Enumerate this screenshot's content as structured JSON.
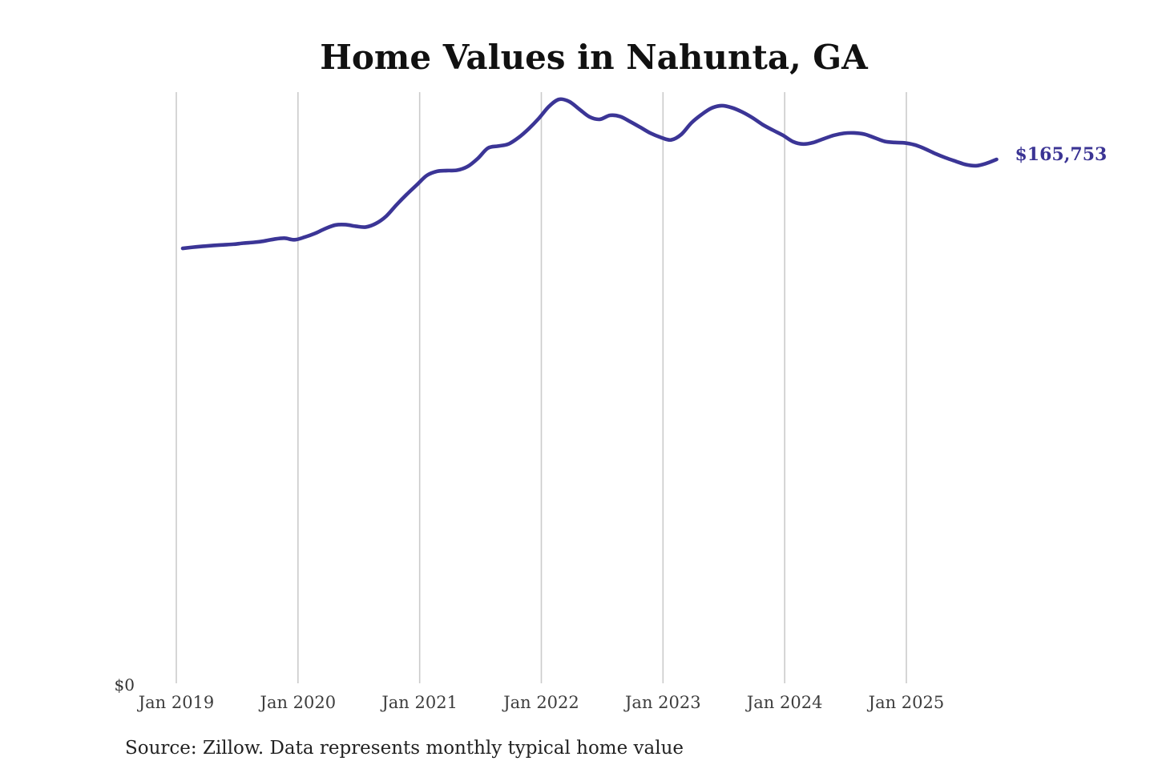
{
  "title": "Home Values in Nahunta, GA",
  "source_note": "Source: Zillow. Data represents monthly typical home value",
  "end_label": "$165,753",
  "y_axis": {
    "zero_label": "$0"
  },
  "x_axis": {
    "tick_labels": [
      "Jan 2019",
      "Jan 2020",
      "Jan 2021",
      "Jan 2022",
      "Jan 2023",
      "Jan 2024",
      "Jan 2025"
    ]
  },
  "colors": {
    "line": "#3b3596",
    "end_label": "#3b3494",
    "gridline": "#cbcbcb",
    "tick_text": "#3d3d3d",
    "yzero_text": "#333333",
    "title_text": "#111111",
    "source_text": "#222222"
  },
  "chart_data": {
    "type": "line",
    "title": "Home Values in Nahunta, GA",
    "series_name": "Monthly typical home value (USD)",
    "xlabel": "",
    "ylabel": "",
    "ylim": [
      0,
      187000
    ],
    "grid": "vertical-yearly",
    "legend": "none",
    "latest_value": 165753,
    "x_tick_labels": [
      "Jan 2019",
      "Jan 2020",
      "Jan 2021",
      "Jan 2022",
      "Jan 2023",
      "Jan 2024",
      "Jan 2025"
    ],
    "x": [
      "2019-01",
      "2019-02",
      "2019-03",
      "2019-04",
      "2019-05",
      "2019-06",
      "2019-07",
      "2019-08",
      "2019-09",
      "2019-10",
      "2019-11",
      "2019-12",
      "2020-01",
      "2020-02",
      "2020-03",
      "2020-04",
      "2020-05",
      "2020-06",
      "2020-07",
      "2020-08",
      "2020-09",
      "2020-10",
      "2020-11",
      "2020-12",
      "2021-01",
      "2021-02",
      "2021-03",
      "2021-04",
      "2021-05",
      "2021-06",
      "2021-07",
      "2021-08",
      "2021-09",
      "2021-10",
      "2021-11",
      "2021-12",
      "2022-01",
      "2022-02",
      "2022-03",
      "2022-04",
      "2022-05",
      "2022-06",
      "2022-07",
      "2022-08",
      "2022-09",
      "2022-10",
      "2022-11",
      "2022-12",
      "2023-01",
      "2023-02",
      "2023-03",
      "2023-04",
      "2023-05",
      "2023-06",
      "2023-07",
      "2023-08",
      "2023-09",
      "2023-10",
      "2023-11",
      "2023-12",
      "2024-01",
      "2024-02",
      "2024-03",
      "2024-04",
      "2024-05",
      "2024-06",
      "2024-07",
      "2024-08",
      "2024-09",
      "2024-10",
      "2024-11",
      "2024-12",
      "2025-01",
      "2025-02",
      "2025-03",
      "2025-04",
      "2025-05",
      "2025-06",
      "2025-07",
      "2025-08",
      "2025-09"
    ],
    "values": [
      137700,
      138050,
      138350,
      138600,
      138800,
      139000,
      139350,
      139600,
      140000,
      140600,
      140900,
      140400,
      141250,
      142400,
      143900,
      145050,
      145170,
      144670,
      144420,
      145550,
      147830,
      151370,
      154650,
      157680,
      160700,
      162000,
      162230,
      162360,
      163500,
      166030,
      169300,
      169950,
      170580,
      172600,
      175380,
      178670,
      182450,
      184700,
      184000,
      181550,
      179150,
      178400,
      179650,
      179300,
      177650,
      175850,
      174000,
      172700,
      171900,
      173600,
      177250,
      179900,
      181950,
      182700,
      182050,
      180700,
      178900,
      176750,
      175000,
      173350,
      171350,
      170600,
      171100,
      172250,
      173350,
      174000,
      174100,
      173700,
      172600,
      171450,
      171100,
      170950,
      170300,
      169050,
      167550,
      166250,
      165150,
      164100,
      163750,
      164500,
      165753
    ]
  }
}
